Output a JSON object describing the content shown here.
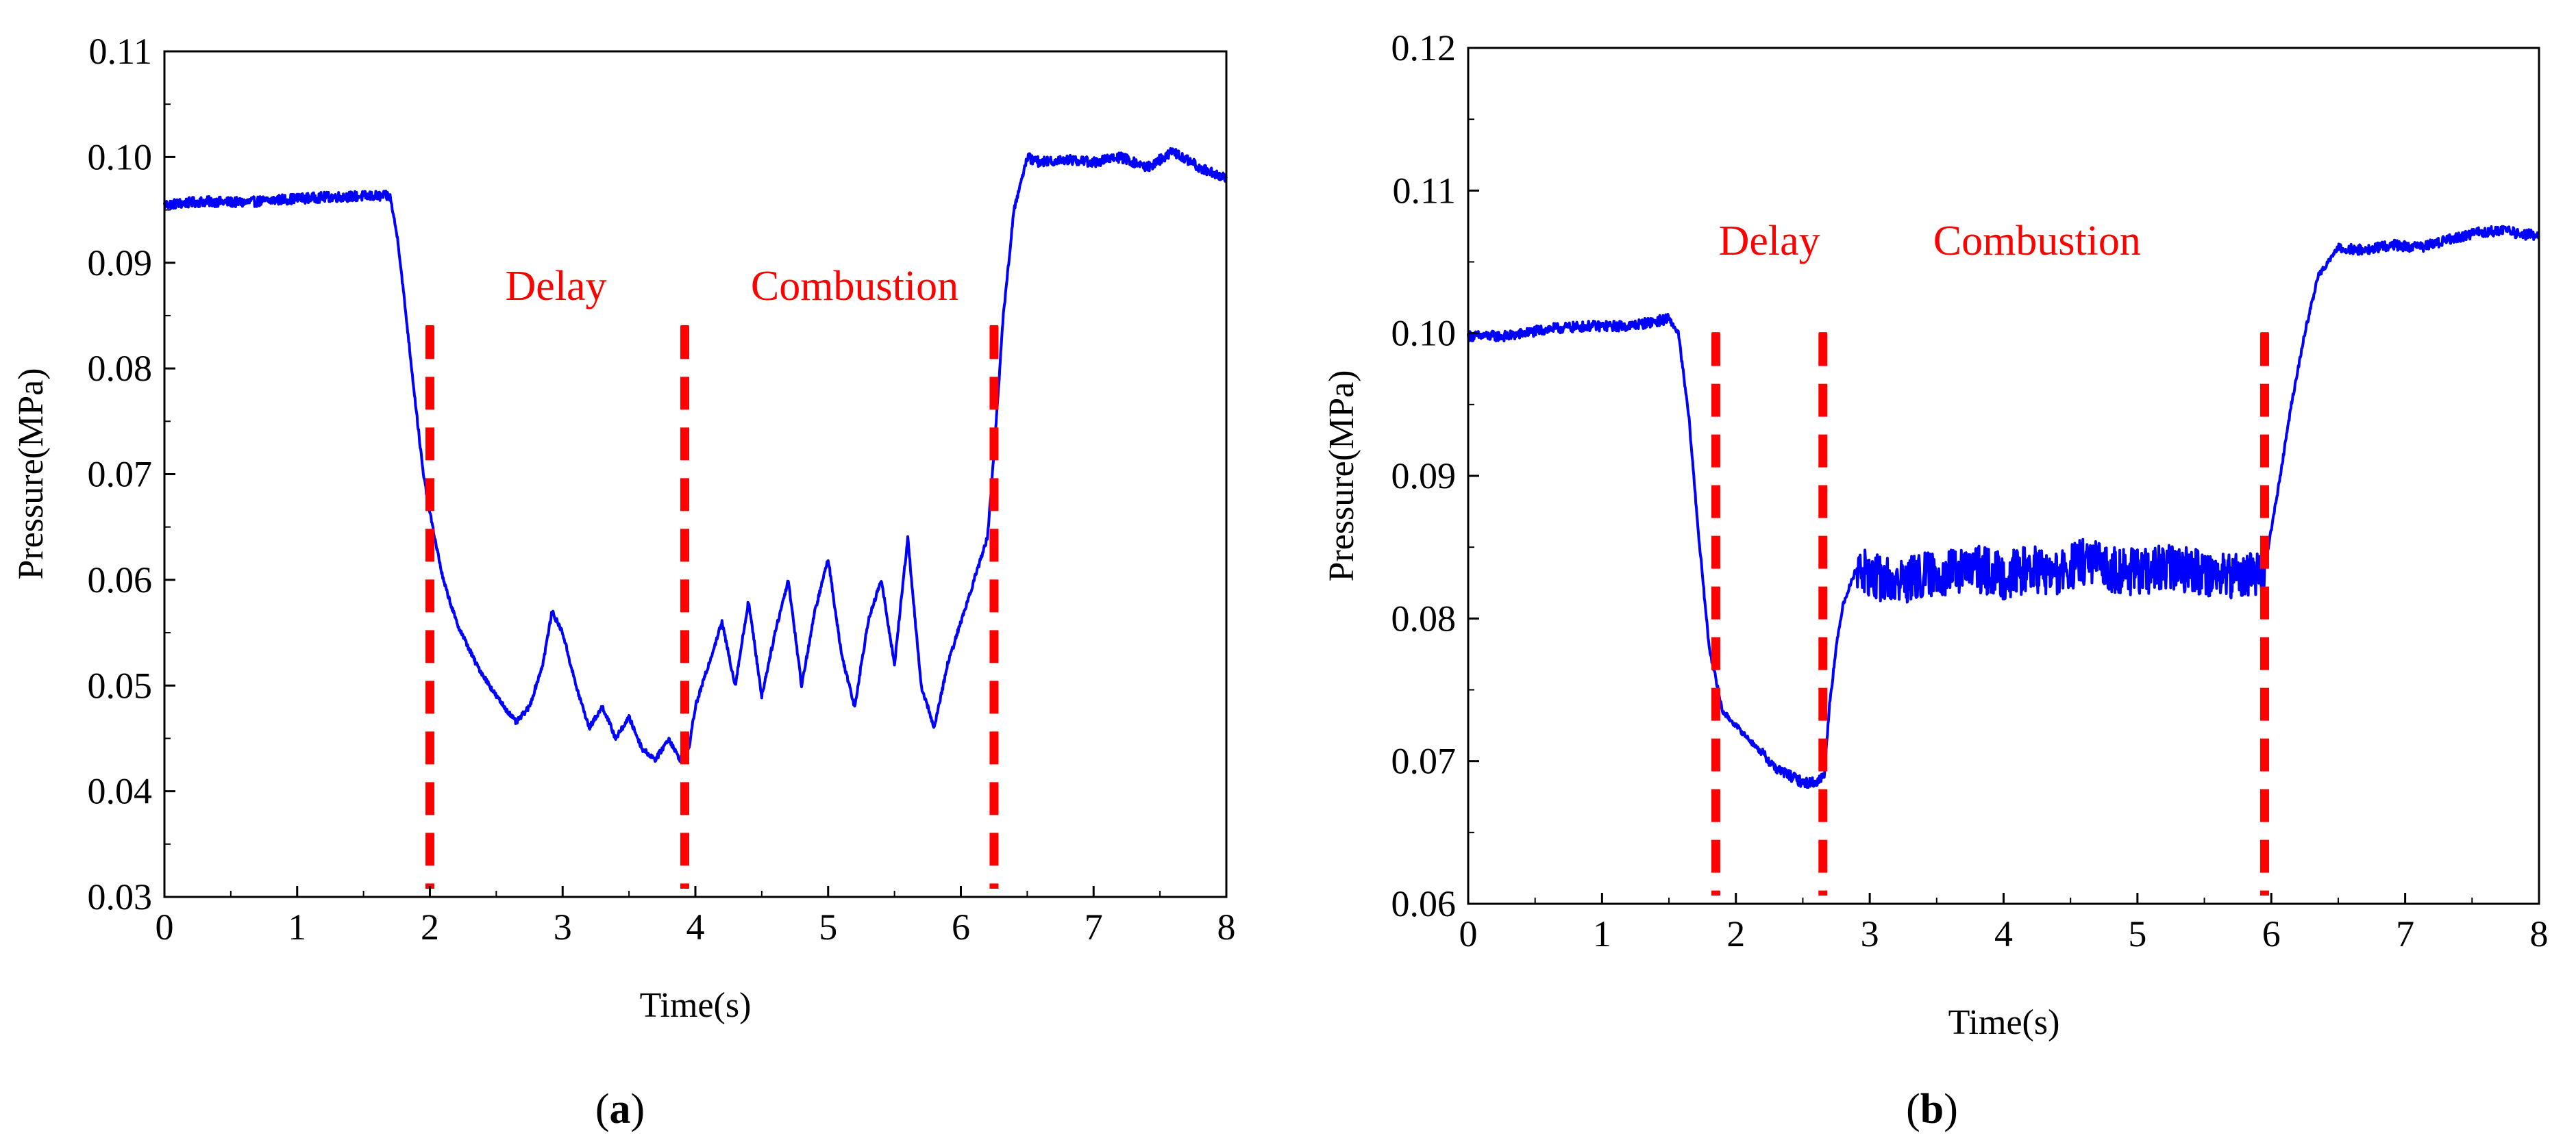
{
  "figure": {
    "panel_labels": [
      {
        "open": "(",
        "letter": "a",
        "close": ")"
      },
      {
        "open": "(",
        "letter": "b",
        "close": ")"
      }
    ]
  },
  "chart_data": [
    {
      "type": "line",
      "panel": "a",
      "title": "",
      "xlabel": "Time(s)",
      "ylabel": "Pressure(MPa)",
      "xlim": [
        0,
        8
      ],
      "ylim": [
        0.03,
        0.11
      ],
      "xticks": [
        0,
        1,
        2,
        3,
        4,
        5,
        6,
        7,
        8
      ],
      "yticks": [
        0.03,
        0.04,
        0.05,
        0.06,
        0.07,
        0.08,
        0.09,
        0.1,
        0.11
      ],
      "ytick_labels": [
        "0.03",
        "0.04",
        "0.05",
        "0.06",
        "0.07",
        "0.08",
        "0.09",
        "0.10",
        "0.11"
      ],
      "grid": false,
      "line_color": "#0000ff",
      "marker_color": "#ff0000",
      "series": [
        {
          "name": "Pressure",
          "x": [
            0.0,
            0.3,
            0.6,
            0.9,
            1.2,
            1.5,
            1.7,
            1.76,
            1.82,
            1.88,
            1.95,
            2.02,
            2.1,
            2.2,
            2.35,
            2.5,
            2.65,
            2.75,
            2.85,
            2.92,
            3.0,
            3.1,
            3.2,
            3.3,
            3.4,
            3.5,
            3.6,
            3.7,
            3.8,
            3.88,
            3.95,
            4.0,
            4.1,
            4.2,
            4.3,
            4.4,
            4.5,
            4.6,
            4.7,
            4.8,
            4.9,
            5.0,
            5.1,
            5.2,
            5.3,
            5.4,
            5.5,
            5.6,
            5.7,
            5.8,
            5.9,
            6.0,
            6.1,
            6.2,
            6.25,
            6.32,
            6.4,
            6.5,
            6.6,
            6.8,
            7.0,
            7.2,
            7.4,
            7.6,
            7.8,
            8.0
          ],
          "y": [
            0.0955,
            0.0958,
            0.0957,
            0.096,
            0.0962,
            0.0963,
            0.0963,
            0.092,
            0.085,
            0.078,
            0.07,
            0.065,
            0.06,
            0.056,
            0.052,
            0.049,
            0.0465,
            0.048,
            0.052,
            0.057,
            0.055,
            0.05,
            0.046,
            0.048,
            0.045,
            0.047,
            0.044,
            0.043,
            0.045,
            0.043,
            0.044,
            0.048,
            0.052,
            0.056,
            0.05,
            0.058,
            0.049,
            0.055,
            0.06,
            0.05,
            0.057,
            0.062,
            0.053,
            0.048,
            0.056,
            0.06,
            0.052,
            0.064,
            0.05,
            0.046,
            0.052,
            0.056,
            0.06,
            0.064,
            0.072,
            0.085,
            0.095,
            0.1,
            0.0995,
            0.0998,
            0.0995,
            0.1,
            0.099,
            0.1005,
            0.099,
            0.098
          ]
        }
      ],
      "markers": [
        {
          "x": 2.0,
          "y_top": 0.084
        },
        {
          "x": 3.92,
          "y_top": 0.084
        },
        {
          "x": 6.25,
          "y_top": 0.084
        }
      ],
      "annotations": [
        {
          "text": "Delay",
          "x": 2.95,
          "y": 0.0865
        },
        {
          "text": "Combustion",
          "x": 5.2,
          "y": 0.0865
        }
      ]
    },
    {
      "type": "line",
      "panel": "b",
      "title": "",
      "xlabel": "Time(s)",
      "ylabel": "Pressure(MPa)",
      "xlim": [
        0,
        8
      ],
      "ylim": [
        0.06,
        0.12
      ],
      "xticks": [
        0,
        1,
        2,
        3,
        4,
        5,
        6,
        7,
        8
      ],
      "yticks": [
        0.06,
        0.07,
        0.08,
        0.09,
        0.1,
        0.11,
        0.12
      ],
      "ytick_labels": [
        "0.06",
        "0.07",
        "0.08",
        "0.09",
        "0.10",
        "0.11",
        "0.12"
      ],
      "grid": false,
      "line_color": "#0000ff",
      "marker_color": "#ff0000",
      "series": [
        {
          "name": "Pressure",
          "x": [
            0.0,
            0.3,
            0.6,
            0.9,
            1.2,
            1.5,
            1.57,
            1.65,
            1.72,
            1.8,
            1.9,
            2.0,
            2.1,
            2.2,
            2.3,
            2.4,
            2.5,
            2.6,
            2.66,
            2.7,
            2.75,
            2.8,
            2.9,
            3.0,
            3.2,
            3.4,
            3.6,
            3.8,
            4.0,
            4.2,
            4.4,
            4.6,
            4.8,
            5.0,
            5.2,
            5.4,
            5.6,
            5.8,
            5.95,
            6.05,
            6.15,
            6.25,
            6.35,
            6.5,
            6.7,
            6.9,
            7.1,
            7.3,
            7.5,
            7.7,
            8.0
          ],
          "y": [
            0.0998,
            0.0998,
            0.1003,
            0.1005,
            0.1005,
            0.101,
            0.1,
            0.094,
            0.086,
            0.078,
            0.0735,
            0.0725,
            0.0715,
            0.0705,
            0.0695,
            0.069,
            0.0685,
            0.0685,
            0.069,
            0.074,
            0.078,
            0.081,
            0.0835,
            0.083,
            0.0825,
            0.083,
            0.0832,
            0.0835,
            0.083,
            0.0835,
            0.083,
            0.084,
            0.0835,
            0.0832,
            0.0835,
            0.0835,
            0.083,
            0.083,
            0.0835,
            0.089,
            0.095,
            0.1,
            0.104,
            0.106,
            0.1058,
            0.1062,
            0.106,
            0.1065,
            0.107,
            0.1072,
            0.1068
          ]
        }
      ],
      "markers": [
        {
          "x": 1.85,
          "y_top": 0.1
        },
        {
          "x": 2.65,
          "y_top": 0.1
        },
        {
          "x": 5.95,
          "y_top": 0.1
        }
      ],
      "annotations": [
        {
          "text": "Delay",
          "x": 2.25,
          "y": 0.1055
        },
        {
          "text": "Combustion",
          "x": 4.25,
          "y": 0.1055
        }
      ]
    }
  ]
}
